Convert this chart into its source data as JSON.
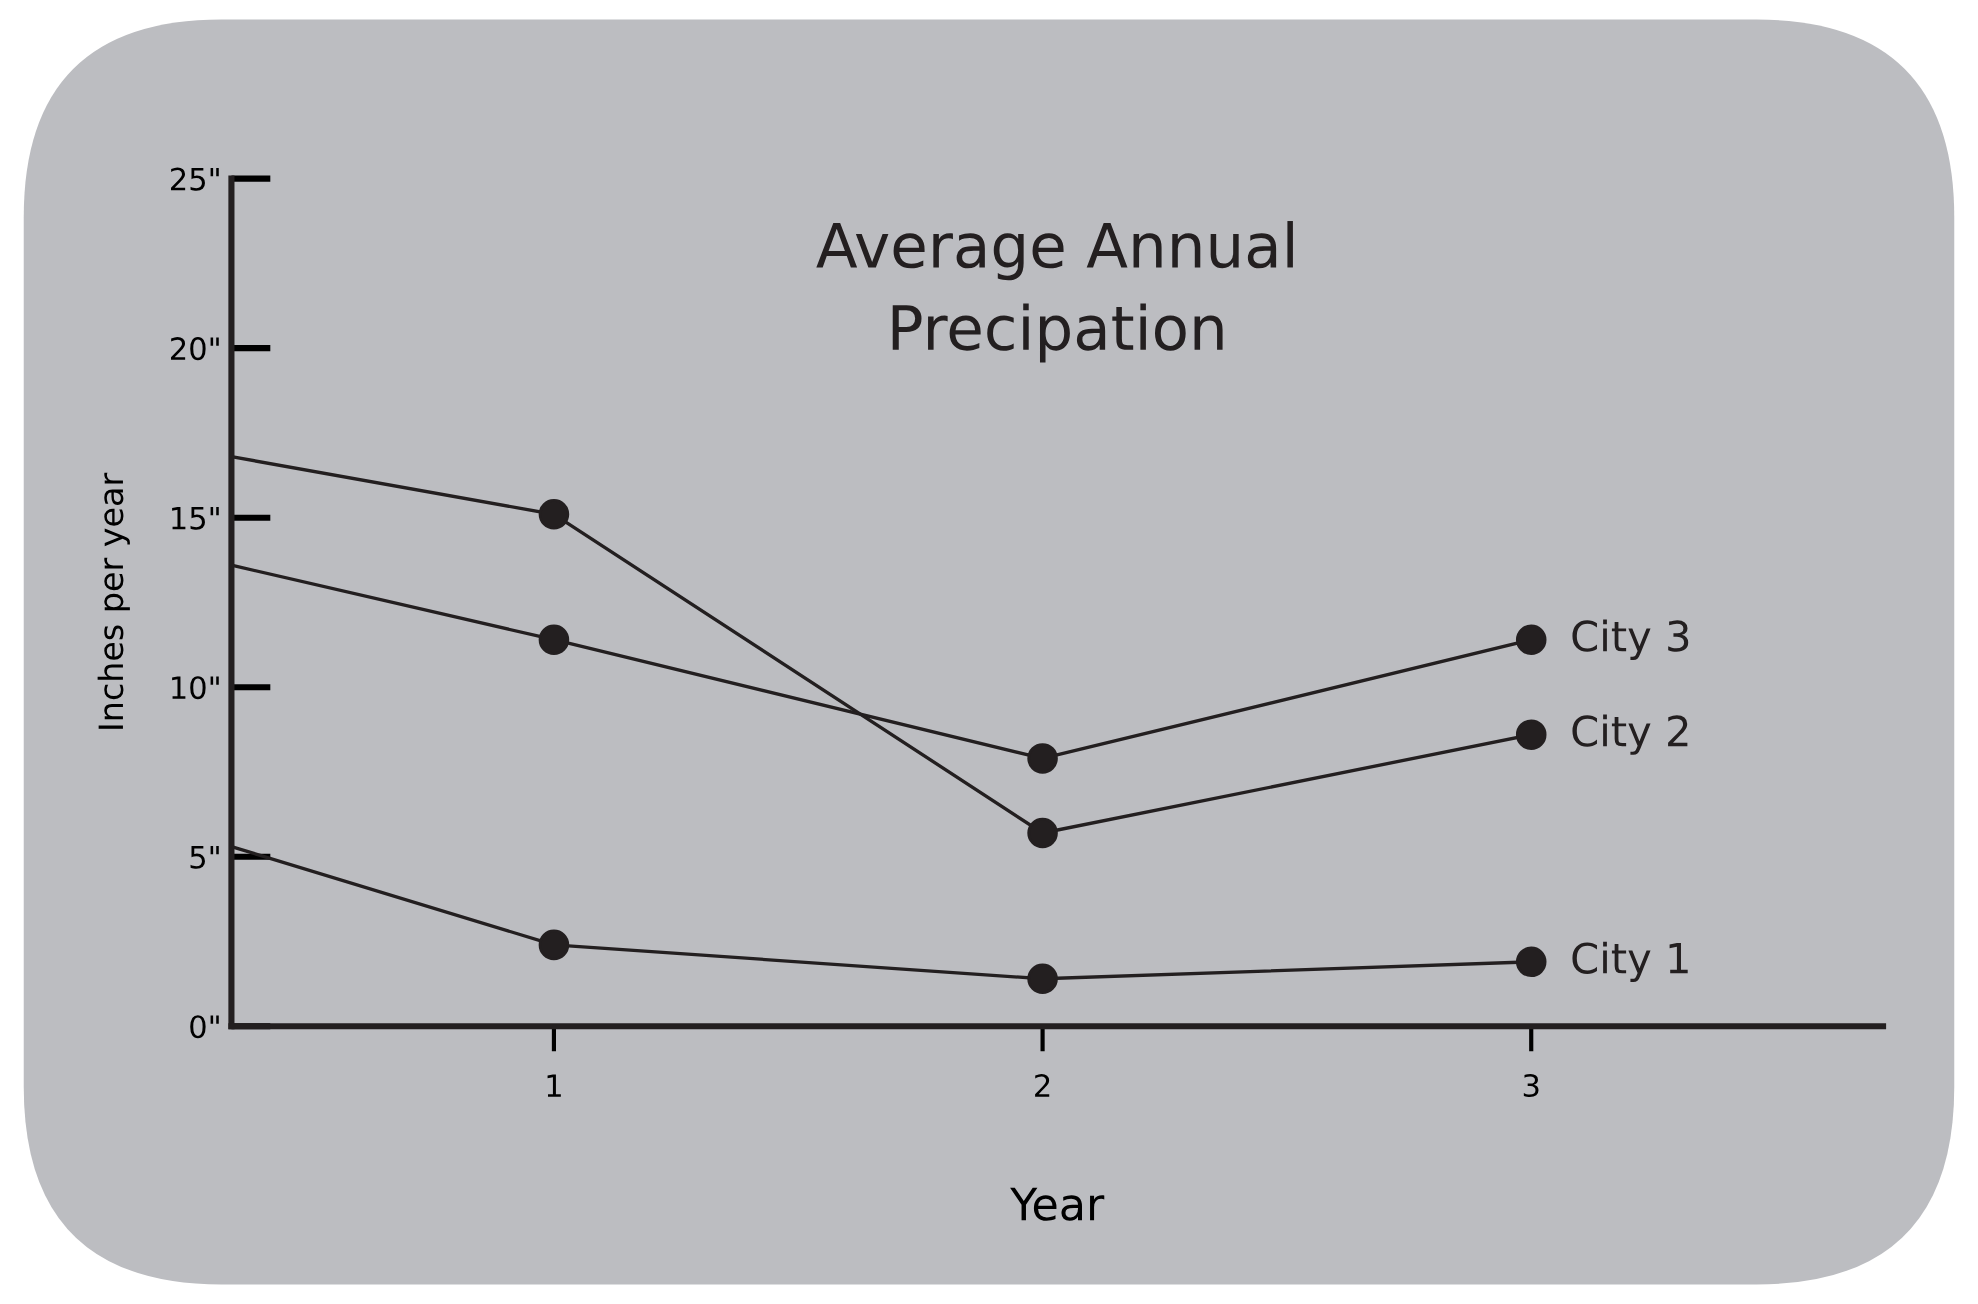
{
  "chart_data": {
    "type": "line",
    "title": "Average Annual\nPrecipation",
    "xlabel": "Year",
    "ylabel": "Inches per year",
    "xlim": [
      0.34,
      3.72
    ],
    "xticks": [
      1,
      2,
      3
    ],
    "ylim": [
      0,
      25
    ],
    "yticks": [
      {
        "value": 0,
        "label": "0\""
      },
      {
        "value": 5,
        "label": "5\""
      },
      {
        "value": 10,
        "label": "10\""
      },
      {
        "value": 15,
        "label": "15\""
      },
      {
        "value": 20,
        "label": "20\""
      },
      {
        "value": 25,
        "label": "25\""
      }
    ],
    "x": [
      0.34,
      1,
      2,
      3
    ],
    "marker": "circle",
    "line_style": "solid",
    "grid": false,
    "legend": false,
    "series": [
      {
        "name": "City 1",
        "color": "#231f20",
        "values": [
          5.3,
          2.4,
          1.4,
          1.9
        ]
      },
      {
        "name": "City 2",
        "color": "#231f20",
        "values": [
          16.8,
          15.1,
          5.7,
          8.6
        ]
      },
      {
        "name": "City 3",
        "color": "#231f20",
        "values": [
          13.6,
          11.4,
          7.9,
          11.4
        ]
      }
    ]
  }
}
